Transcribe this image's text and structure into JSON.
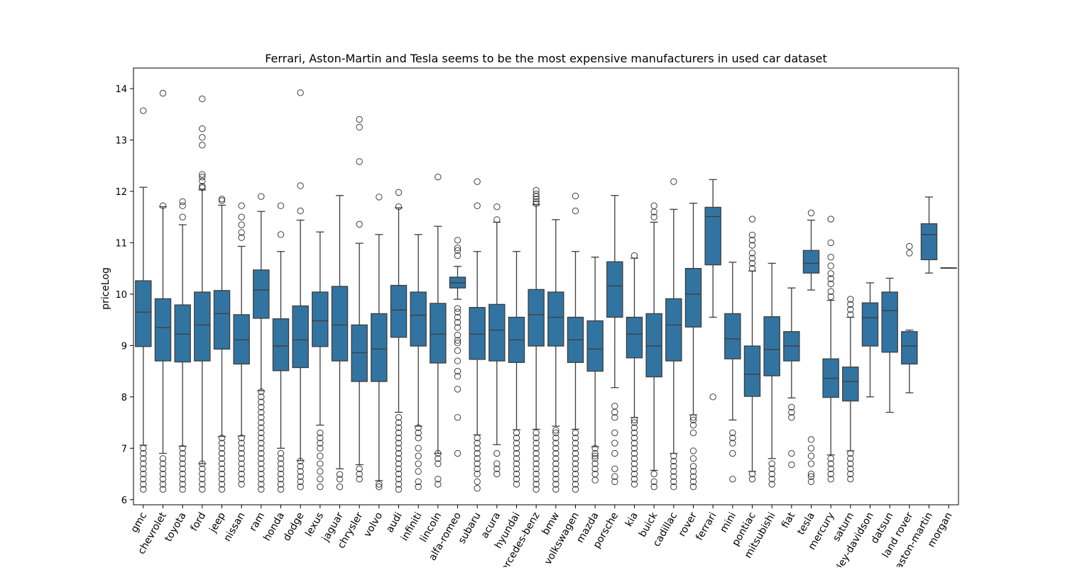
{
  "chart_data": {
    "type": "box",
    "title": "Ferrari, Aston-Martin and Tesla seems to be the most expensive manufacturers in used car dataset",
    "xlabel": "",
    "ylabel": "priceLog",
    "ylim": [
      5.9,
      14.4
    ],
    "yticks": [
      6,
      7,
      8,
      9,
      10,
      11,
      12,
      13,
      14
    ],
    "box_color": "#3274a1",
    "line_color": "#3d3d3d",
    "categories": [
      "gmc",
      "chevrolet",
      "toyota",
      "ford",
      "jeep",
      "nissan",
      "ram",
      "honda",
      "dodge",
      "lexus",
      "jaguar",
      "chrysler",
      "volvo",
      "audi",
      "infiniti",
      "lincoln",
      "alfa-romeo",
      "subaru",
      "acura",
      "hyundai",
      "mercedes-benz",
      "bmw",
      "volkswagen",
      "mazda",
      "porsche",
      "kia",
      "buick",
      "cadillac",
      "rover",
      "ferrari",
      "mini",
      "pontiac",
      "mitsubishi",
      "fiat",
      "tesla",
      "mercury",
      "saturn",
      "harley-davidson",
      "datsun",
      "land rover",
      "aston-martin",
      "morgan"
    ],
    "boxes": [
      {
        "whislo": 7.06,
        "q1": 8.98,
        "med": 9.65,
        "q3": 10.26,
        "whishi": 12.08,
        "fliers": [
          6.2,
          6.3,
          6.4,
          6.5,
          6.6,
          6.7,
          6.8,
          6.9,
          7.0,
          13.57
        ]
      },
      {
        "whislo": 6.9,
        "q1": 8.7,
        "med": 9.35,
        "q3": 9.91,
        "whishi": 11.7,
        "fliers": [
          6.2,
          6.3,
          6.4,
          6.5,
          6.6,
          6.7,
          6.8,
          11.72,
          13.91
        ]
      },
      {
        "whislo": 7.04,
        "q1": 8.68,
        "med": 9.22,
        "q3": 9.79,
        "whishi": 11.35,
        "fliers": [
          6.2,
          6.3,
          6.4,
          6.5,
          6.6,
          6.7,
          6.8,
          6.9,
          7.0,
          11.5,
          11.72,
          11.8
        ]
      },
      {
        "whislo": 6.7,
        "q1": 8.7,
        "med": 9.4,
        "q3": 10.04,
        "whishi": 12.03,
        "fliers": [
          6.2,
          6.3,
          6.4,
          6.5,
          6.6,
          6.7,
          12.07,
          12.1,
          12.2,
          12.28,
          12.33,
          12.9,
          13.05,
          13.22,
          13.8
        ]
      },
      {
        "whislo": 7.23,
        "q1": 8.93,
        "med": 9.62,
        "q3": 10.07,
        "whishi": 11.73,
        "fliers": [
          6.2,
          6.3,
          6.4,
          6.5,
          6.6,
          6.7,
          6.8,
          6.9,
          7.0,
          7.1,
          7.2,
          11.82,
          11.85
        ]
      },
      {
        "whislo": 7.24,
        "q1": 8.64,
        "med": 9.11,
        "q3": 9.6,
        "whishi": 10.93,
        "fliers": [
          6.3,
          6.4,
          6.5,
          6.6,
          6.7,
          6.8,
          6.9,
          7.0,
          7.1,
          7.2,
          11.1,
          11.2,
          11.35,
          11.5,
          11.72
        ]
      },
      {
        "whislo": 8.12,
        "q1": 9.53,
        "med": 10.08,
        "q3": 10.47,
        "whishi": 11.61,
        "fliers": [
          6.2,
          6.3,
          6.4,
          6.5,
          6.6,
          6.7,
          6.8,
          6.9,
          7.0,
          7.1,
          7.2,
          7.3,
          7.4,
          7.5,
          7.6,
          7.7,
          7.8,
          7.9,
          8.0,
          8.1,
          11.9
        ]
      },
      {
        "whislo": 7.0,
        "q1": 8.51,
        "med": 8.99,
        "q3": 9.52,
        "whishi": 10.83,
        "fliers": [
          6.2,
          6.3,
          6.4,
          6.5,
          6.6,
          6.7,
          6.8,
          6.9,
          11.16,
          11.72
        ]
      },
      {
        "whislo": 6.76,
        "q1": 8.57,
        "med": 9.11,
        "q3": 9.77,
        "whishi": 11.44,
        "fliers": [
          6.25,
          6.35,
          6.45,
          6.55,
          6.65,
          6.75,
          11.62,
          12.11,
          13.92
        ]
      },
      {
        "whislo": 7.45,
        "q1": 8.98,
        "med": 9.48,
        "q3": 10.04,
        "whishi": 11.21,
        "fliers": [
          6.25,
          6.4,
          6.55,
          6.7,
          6.85,
          7.0,
          7.1,
          7.2,
          7.3
        ]
      },
      {
        "whislo": 6.6,
        "q1": 8.7,
        "med": 9.4,
        "q3": 10.15,
        "whishi": 11.92,
        "fliers": [
          6.25,
          6.4,
          6.49
        ]
      },
      {
        "whislo": 6.68,
        "q1": 8.3,
        "med": 8.86,
        "q3": 9.4,
        "whishi": 10.99,
        "fliers": [
          6.4,
          6.5,
          6.6,
          11.36,
          12.58,
          13.25,
          13.4
        ]
      },
      {
        "whislo": 6.37,
        "q1": 8.3,
        "med": 8.93,
        "q3": 9.62,
        "whishi": 11.16,
        "fliers": [
          6.25,
          6.3,
          11.89
        ]
      },
      {
        "whislo": 7.7,
        "q1": 9.16,
        "med": 9.69,
        "q3": 10.17,
        "whishi": 11.68,
        "fliers": [
          6.2,
          6.3,
          6.4,
          6.5,
          6.6,
          6.7,
          6.8,
          6.9,
          7.0,
          7.1,
          7.2,
          7.3,
          7.4,
          7.5,
          7.6,
          11.7,
          11.98
        ]
      },
      {
        "whislo": 7.43,
        "q1": 8.99,
        "med": 9.59,
        "q3": 10.04,
        "whishi": 11.16,
        "fliers": [
          6.25,
          6.35,
          6.55,
          6.7,
          6.85,
          7.0,
          7.2,
          7.3,
          7.4
        ]
      },
      {
        "whislo": 6.9,
        "q1": 8.66,
        "med": 9.22,
        "q3": 9.82,
        "whishi": 11.32,
        "fliers": [
          6.3,
          6.4,
          6.7,
          6.8,
          6.9,
          12.28
        ]
      },
      {
        "whislo": 9.9,
        "q1": 10.12,
        "med": 10.22,
        "q3": 10.33,
        "whishi": 10.54,
        "fliers": [
          6.9,
          7.6,
          8.15,
          8.4,
          8.5,
          8.7,
          8.9,
          9.05,
          9.1,
          9.2,
          9.35,
          9.45,
          9.55,
          9.65,
          9.72,
          10.75,
          10.85,
          10.9,
          11.05
        ]
      },
      {
        "whislo": 7.26,
        "q1": 8.73,
        "med": 9.22,
        "q3": 9.74,
        "whishi": 10.83,
        "fliers": [
          6.22,
          6.35,
          6.5,
          6.6,
          6.7,
          6.8,
          6.9,
          7.0,
          7.1,
          7.2,
          11.72,
          12.19
        ]
      },
      {
        "whislo": 7.07,
        "q1": 8.7,
        "med": 9.3,
        "q3": 9.8,
        "whishi": 11.4,
        "fliers": [
          6.5,
          6.6,
          6.7,
          6.9,
          11.45,
          11.7
        ]
      },
      {
        "whislo": 7.36,
        "q1": 8.67,
        "med": 9.11,
        "q3": 9.55,
        "whishi": 10.83,
        "fliers": [
          6.3,
          6.4,
          6.5,
          6.6,
          6.7,
          6.8,
          6.9,
          7.0,
          7.1,
          7.2,
          7.3
        ]
      },
      {
        "whislo": 7.37,
        "q1": 8.99,
        "med": 9.6,
        "q3": 10.09,
        "whishi": 11.74,
        "fliers": [
          6.2,
          6.3,
          6.4,
          6.5,
          6.6,
          6.7,
          6.8,
          6.9,
          7.0,
          7.1,
          7.2,
          7.3,
          11.76,
          11.8,
          11.85,
          11.9,
          11.95,
          12.02
        ]
      },
      {
        "whislo": 7.43,
        "q1": 8.99,
        "med": 9.55,
        "q3": 10.04,
        "whishi": 11.45,
        "fliers": [
          6.2,
          6.3,
          6.4,
          6.5,
          6.6,
          6.7,
          6.8,
          6.9,
          7.0,
          7.1,
          7.2,
          7.3,
          7.35
        ]
      },
      {
        "whislo": 7.37,
        "q1": 8.67,
        "med": 9.11,
        "q3": 9.55,
        "whishi": 10.83,
        "fliers": [
          6.2,
          6.3,
          6.4,
          6.5,
          6.6,
          6.7,
          6.8,
          6.9,
          7.0,
          7.1,
          7.2,
          7.3,
          11.62,
          11.91
        ]
      },
      {
        "whislo": 7.03,
        "q1": 8.5,
        "med": 8.93,
        "q3": 9.48,
        "whishi": 10.72,
        "fliers": [
          6.38,
          6.5,
          6.6,
          6.7,
          6.8,
          6.85,
          6.9,
          7.0
        ]
      },
      {
        "whislo": 8.18,
        "q1": 9.55,
        "med": 10.16,
        "q3": 10.63,
        "whishi": 11.92,
        "fliers": [
          6.35,
          6.45,
          6.6,
          6.9,
          7.1,
          7.3,
          7.6,
          7.7,
          7.82
        ]
      },
      {
        "whislo": 7.6,
        "q1": 8.76,
        "med": 9.22,
        "q3": 9.55,
        "whishi": 10.7,
        "fliers": [
          6.3,
          6.4,
          6.5,
          6.6,
          6.7,
          6.8,
          6.9,
          7.0,
          7.1,
          7.2,
          7.3,
          7.4,
          7.5,
          7.55,
          10.75
        ]
      },
      {
        "whislo": 6.57,
        "q1": 8.39,
        "med": 8.99,
        "q3": 9.62,
        "whishi": 11.4,
        "fliers": [
          6.25,
          6.35,
          6.5,
          11.5,
          11.6,
          11.72
        ]
      },
      {
        "whislo": 6.9,
        "q1": 8.7,
        "med": 9.4,
        "q3": 9.91,
        "whishi": 11.65,
        "fliers": [
          6.25,
          6.35,
          6.45,
          6.55,
          6.65,
          6.75,
          6.85,
          12.19
        ]
      },
      {
        "whislo": 7.65,
        "q1": 9.36,
        "med": 10.0,
        "q3": 10.5,
        "whishi": 11.77,
        "fliers": [
          6.25,
          6.35,
          6.45,
          6.55,
          6.65,
          6.8,
          6.95,
          7.3,
          7.45,
          7.55,
          7.6
        ]
      },
      {
        "whislo": 9.55,
        "q1": 10.57,
        "med": 11.51,
        "q3": 11.69,
        "whishi": 12.23,
        "fliers": [
          8.0
        ]
      },
      {
        "whislo": 7.55,
        "q1": 8.74,
        "med": 9.13,
        "q3": 9.62,
        "whishi": 10.62,
        "fliers": [
          6.4,
          6.9,
          7.1,
          7.2,
          7.3
        ]
      },
      {
        "whislo": 6.55,
        "q1": 8.01,
        "med": 8.44,
        "q3": 8.99,
        "whishi": 10.45,
        "fliers": [
          6.4,
          6.5,
          10.5,
          10.6,
          10.7,
          10.8,
          10.95,
          11.05,
          11.15,
          11.46
        ]
      },
      {
        "whislo": 6.8,
        "q1": 8.41,
        "med": 8.92,
        "q3": 9.56,
        "whishi": 10.6,
        "fliers": [
          6.3,
          6.4,
          6.5,
          6.6,
          6.7
        ]
      },
      {
        "whislo": 7.98,
        "q1": 8.7,
        "med": 8.99,
        "q3": 9.27,
        "whishi": 10.12,
        "fliers": [
          6.68,
          6.9,
          7.6,
          7.7,
          7.8
        ]
      },
      {
        "whislo": 10.08,
        "q1": 10.41,
        "med": 10.6,
        "q3": 10.85,
        "whishi": 11.44,
        "fliers": [
          6.35,
          6.45,
          6.5,
          6.7,
          6.85,
          7.0,
          7.17,
          11.58
        ]
      },
      {
        "whislo": 6.87,
        "q1": 7.99,
        "med": 8.36,
        "q3": 8.74,
        "whishi": 9.88,
        "fliers": [
          6.4,
          6.5,
          6.6,
          6.7,
          6.8,
          9.95,
          10.05,
          10.2,
          10.3,
          10.4,
          10.55,
          10.72,
          11.0,
          11.46
        ]
      },
      {
        "whislo": 6.95,
        "q1": 7.92,
        "med": 8.3,
        "q3": 8.58,
        "whishi": 9.55,
        "fliers": [
          6.4,
          6.5,
          6.6,
          6.7,
          6.8,
          6.9,
          9.6,
          9.7,
          9.8,
          9.9
        ]
      },
      {
        "whislo": 8.0,
        "q1": 8.99,
        "med": 9.54,
        "q3": 9.83,
        "whishi": 10.22,
        "fliers": []
      },
      {
        "whislo": 7.7,
        "q1": 8.87,
        "med": 9.68,
        "q3": 10.04,
        "whishi": 10.31,
        "fliers": []
      },
      {
        "whislo": 8.08,
        "q1": 8.64,
        "med": 8.99,
        "q3": 9.27,
        "whishi": 9.3,
        "fliers": [
          10.8,
          10.93
        ]
      },
      {
        "whislo": 10.41,
        "q1": 10.67,
        "med": 11.16,
        "q3": 11.37,
        "whishi": 11.89,
        "fliers": []
      },
      {
        "whislo": 10.51,
        "q1": 10.51,
        "med": 10.51,
        "q3": 10.51,
        "whishi": 10.51,
        "fliers": []
      }
    ]
  }
}
